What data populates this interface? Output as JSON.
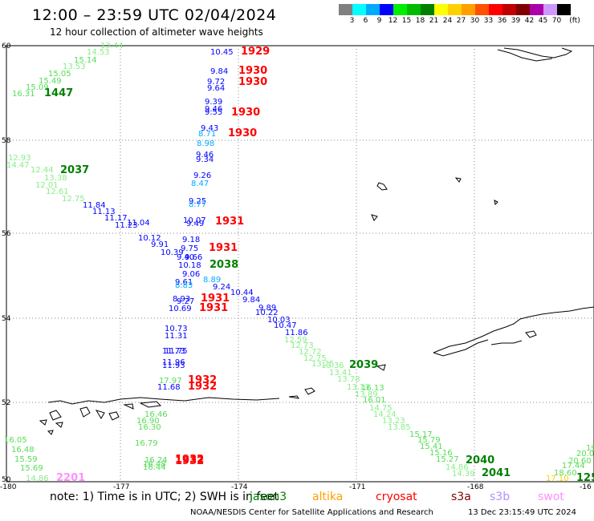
{
  "title": "12:00 – 23:59 UTC 02/04/2024",
  "subtitle": "12 hour collection of altimeter wave heights",
  "color_scale": {
    "unit": "(ft)",
    "labels": [
      "3",
      "6",
      "9",
      "12",
      "15",
      "18",
      "21",
      "24",
      "27",
      "30",
      "33",
      "36",
      "39",
      "42",
      "45",
      "70"
    ],
    "colors": [
      "#808080",
      "#00ffff",
      "#00aaff",
      "#0000ff",
      "#00ee00",
      "#00bb00",
      "#008000",
      "#ffff00",
      "#ffd000",
      "#ffa000",
      "#ff5000",
      "#ff0000",
      "#c00000",
      "#800000",
      "#aa00aa",
      "#cc99ff",
      "#000000"
    ]
  },
  "axes": {
    "lat_labels": [
      "60",
      "58",
      "56",
      "54",
      "52",
      "50"
    ],
    "lon_labels": [
      "-180",
      "-177",
      "-174",
      "-171",
      "-168",
      "-16"
    ]
  },
  "footer": {
    "note": "note: 1) Time is in UTC; 2) SWH is in feet",
    "satellites": [
      {
        "name": "jason3",
        "color": "#008000"
      },
      {
        "name": "altika",
        "color": "#ffa000"
      },
      {
        "name": "cryosat",
        "color": "#ff0000"
      },
      {
        "name": "s3a",
        "color": "#800000"
      },
      {
        "name": "s3b",
        "color": "#b090ff"
      },
      {
        "name": "swot",
        "color": "#ff90ff"
      }
    ],
    "credit": "NOAA/NESDIS Center for Satellite Applications and Research",
    "timestamp": "13 Dec 23:15:49 UTC 2024"
  },
  "map_labels": [
    {
      "t": "10.45",
      "c": "#0000ff"
    },
    {
      "t": "1929",
      "c": "#ff0000"
    },
    {
      "t": "9.84",
      "c": "#0000ff"
    },
    {
      "t": "1930",
      "c": "#ff0000"
    },
    {
      "t": "9.72",
      "c": "#0000ff"
    },
    {
      "t": "1930",
      "c": "#ff0000"
    },
    {
      "t": "9.64",
      "c": "#0000ff"
    },
    {
      "t": "9.39",
      "c": "#0000ff"
    },
    {
      "t": "9.46",
      "c": "#0000ff"
    },
    {
      "t": "9.55",
      "c": "#0000ff"
    },
    {
      "t": "1930",
      "c": "#ff0000"
    },
    {
      "t": "9.43",
      "c": "#0000ff"
    },
    {
      "t": "8.71",
      "c": "#00aaff"
    },
    {
      "t": "1930",
      "c": "#ff0000"
    },
    {
      "t": "8.98",
      "c": "#00aaff"
    },
    {
      "t": "9.46",
      "c": "#0000ff"
    },
    {
      "t": "9.34",
      "c": "#0000ff"
    },
    {
      "t": "9.26",
      "c": "#0000ff"
    },
    {
      "t": "8.47",
      "c": "#00aaff"
    },
    {
      "t": "9.25",
      "c": "#0000ff"
    },
    {
      "t": "8.77",
      "c": "#00aaff"
    },
    {
      "t": "10.07",
      "c": "#0000ff"
    },
    {
      "t": "9.49",
      "c": "#0000ff"
    },
    {
      "t": "1931",
      "c": "#ff0000"
    },
    {
      "t": "9.18",
      "c": "#0000ff"
    },
    {
      "t": "9.75",
      "c": "#0000ff"
    },
    {
      "t": "1931",
      "c": "#ff0000"
    },
    {
      "t": "9.40",
      "c": "#0000ff"
    },
    {
      "t": "9.66",
      "c": "#0000ff"
    },
    {
      "t": "10.18",
      "c": "#0000ff"
    },
    {
      "t": "2038",
      "c": "#008000"
    },
    {
      "t": "9.06",
      "c": "#0000ff"
    },
    {
      "t": "9.61",
      "c": "#0000ff"
    },
    {
      "t": "8.89",
      "c": "#00aaff"
    },
    {
      "t": "8.83",
      "c": "#00aaff"
    },
    {
      "t": "9.24",
      "c": "#0000ff"
    },
    {
      "t": "8.93",
      "c": "#0000ff"
    },
    {
      "t": "9.27",
      "c": "#0000ff"
    },
    {
      "t": "1931",
      "c": "#ff0000"
    },
    {
      "t": "10.69",
      "c": "#0000ff"
    },
    {
      "t": "1931",
      "c": "#ff0000"
    },
    {
      "t": "10.73",
      "c": "#0000ff"
    },
    {
      "t": "11.31",
      "c": "#0000ff"
    },
    {
      "t": "11.73",
      "c": "#0000ff"
    },
    {
      "t": "11.75",
      "c": "#0000ff"
    },
    {
      "t": "11.96",
      "c": "#0000ff"
    },
    {
      "t": "11.93",
      "c": "#0000ff"
    },
    {
      "t": "17.97",
      "c": "#55dd55"
    },
    {
      "t": "1932",
      "c": "#ff0000"
    },
    {
      "t": "11.68",
      "c": "#0000ff"
    },
    {
      "t": "1932",
      "c": "#ff0000"
    },
    {
      "t": "12.93",
      "c": "#88ee88"
    },
    {
      "t": "14.47",
      "c": "#88ee88"
    },
    {
      "t": "12.44",
      "c": "#88ee88"
    },
    {
      "t": "2037",
      "c": "#008000"
    },
    {
      "t": "13.38",
      "c": "#88ee88"
    },
    {
      "t": "12.01",
      "c": "#88ee88"
    },
    {
      "t": "12.61",
      "c": "#88ee88"
    },
    {
      "t": "12.75",
      "c": "#88ee88"
    },
    {
      "t": "11.84",
      "c": "#0000ff"
    },
    {
      "t": "11.13",
      "c": "#0000ff"
    },
    {
      "t": "11.17",
      "c": "#0000ff"
    },
    {
      "t": "11.23",
      "c": "#0000ff"
    },
    {
      "t": "11.04",
      "c": "#0000ff"
    },
    {
      "t": "10.12",
      "c": "#0000ff"
    },
    {
      "t": "9.91",
      "c": "#0000ff"
    },
    {
      "t": "10.39",
      "c": "#0000ff"
    },
    {
      "t": "10.44",
      "c": "#0000ff"
    },
    {
      "t": "9.84",
      "c": "#0000ff"
    },
    {
      "t": "9.89",
      "c": "#0000ff"
    },
    {
      "t": "10.22",
      "c": "#0000ff"
    },
    {
      "t": "10.03",
      "c": "#0000ff"
    },
    {
      "t": "10.47",
      "c": "#0000ff"
    },
    {
      "t": "11.86",
      "c": "#0000ff"
    },
    {
      "t": "12.59",
      "c": "#88ee88"
    },
    {
      "t": "12.73",
      "c": "#88ee88"
    },
    {
      "t": "12.72",
      "c": "#88ee88"
    },
    {
      "t": "12.75",
      "c": "#88ee88"
    },
    {
      "t": "13.25",
      "c": "#88ee88"
    },
    {
      "t": "13.36",
      "c": "#88ee88"
    },
    {
      "t": "2039",
      "c": "#008000"
    },
    {
      "t": "13.41",
      "c": "#88ee88"
    },
    {
      "t": "13.78",
      "c": "#88ee88"
    },
    {
      "t": "13.13",
      "c": "#88ee88"
    },
    {
      "t": "16.13",
      "c": "#55dd55"
    },
    {
      "t": "13.89",
      "c": "#88ee88"
    },
    {
      "t": "16.01",
      "c": "#55dd55"
    },
    {
      "t": "14.75",
      "c": "#88ee88"
    },
    {
      "t": "14.24",
      "c": "#88ee88"
    },
    {
      "t": "13.23",
      "c": "#88ee88"
    },
    {
      "t": "13.85",
      "c": "#88ee88"
    },
    {
      "t": "15.17",
      "c": "#55dd55"
    },
    {
      "t": "15.79",
      "c": "#55dd55"
    },
    {
      "t": "15.41",
      "c": "#55dd55"
    },
    {
      "t": "15.16",
      "c": "#55dd55"
    },
    {
      "t": "2040",
      "c": "#008000"
    },
    {
      "t": "15.27",
      "c": "#55dd55"
    },
    {
      "t": "14.86",
      "c": "#88ee88"
    },
    {
      "t": "2041",
      "c": "#008000"
    },
    {
      "t": "14.39",
      "c": "#88ee88"
    },
    {
      "t": "14.53",
      "c": "#88ee88"
    },
    {
      "t": "13.44",
      "c": "#88ee88"
    },
    {
      "t": "15.14",
      "c": "#55dd55"
    },
    {
      "t": "15.05",
      "c": "#55dd55"
    },
    {
      "t": "13.53",
      "c": "#88ee88"
    },
    {
      "t": "15.49",
      "c": "#55dd55"
    },
    {
      "t": "15.09",
      "c": "#55dd55"
    },
    {
      "t": "16.31",
      "c": "#55dd55"
    },
    {
      "t": "1447",
      "c": "#008000"
    },
    {
      "t": "16.46",
      "c": "#55dd55"
    },
    {
      "t": "16.90",
      "c": "#55dd55"
    },
    {
      "t": "16.30",
      "c": "#55dd55"
    },
    {
      "t": "16.79",
      "c": "#55dd55"
    },
    {
      "t": "16.05",
      "c": "#55dd55"
    },
    {
      "t": "16.48",
      "c": "#55dd55"
    },
    {
      "t": "15.59",
      "c": "#55dd55"
    },
    {
      "t": "15.69",
      "c": "#55dd55"
    },
    {
      "t": "14.86",
      "c": "#88ee88"
    },
    {
      "t": "2201",
      "c": "#ff90ff"
    },
    {
      "t": "16.24",
      "c": "#55dd55"
    },
    {
      "t": "16.48",
      "c": "#55dd55"
    },
    {
      "t": "16.44",
      "c": "#55dd55"
    },
    {
      "t": "1932",
      "c": "#ff0000"
    },
    {
      "t": "1932",
      "c": "#ff0000"
    },
    {
      "t": "19",
      "c": "#55dd55"
    },
    {
      "t": "20.0",
      "c": "#55dd55"
    },
    {
      "t": "20.60",
      "c": "#55dd55"
    },
    {
      "t": "17.44",
      "c": "#55dd55"
    },
    {
      "t": "18.60",
      "c": "#55dd55"
    },
    {
      "t": "17.10",
      "c": "#ffd000"
    },
    {
      "t": "125",
      "c": "#008000"
    }
  ]
}
